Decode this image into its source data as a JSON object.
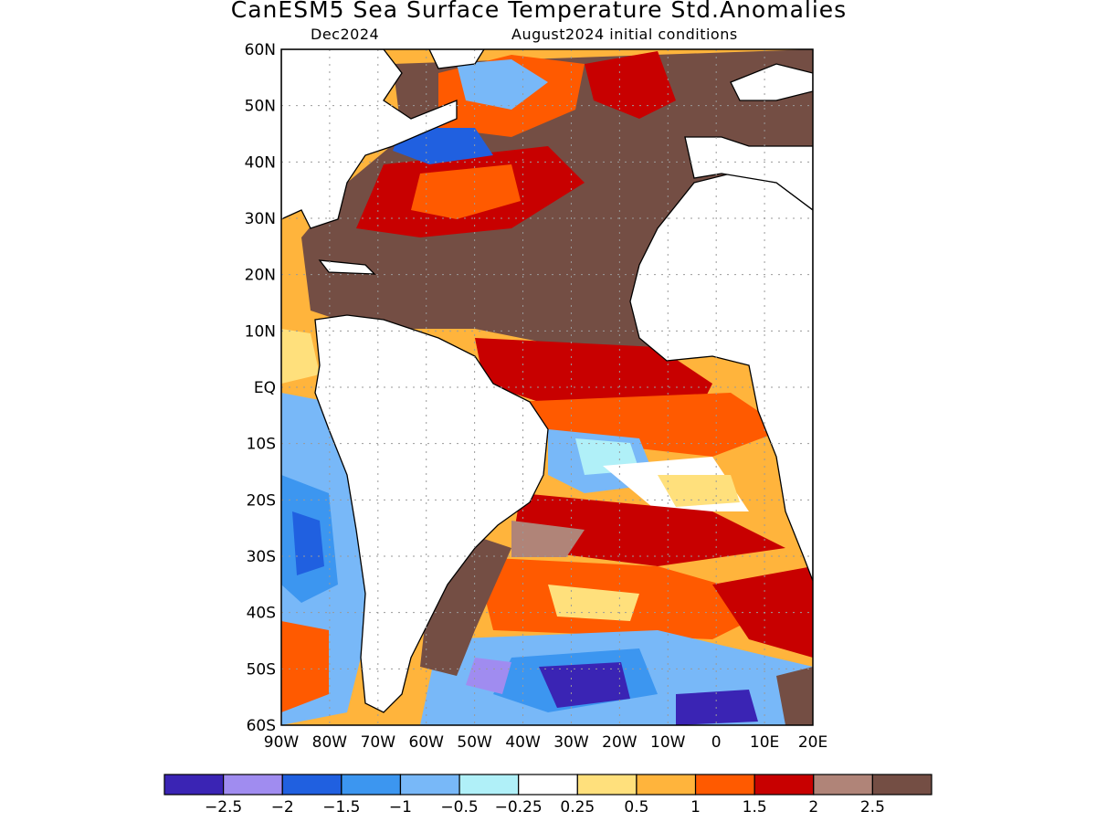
{
  "title": "CanESM5 Sea Surface Temperature Std.Anomalies",
  "subtitle_left": "Dec2024",
  "subtitle_right": "August2024 initial conditions",
  "lat_ticks": [
    "60N",
    "50N",
    "40N",
    "30N",
    "20N",
    "10N",
    "EQ",
    "10S",
    "20S",
    "30S",
    "40S",
    "50S",
    "60S"
  ],
  "lon_ticks": [
    "90W",
    "80W",
    "70W",
    "60W",
    "50W",
    "40W",
    "30W",
    "20W",
    "10W",
    "0",
    "10E",
    "20E"
  ],
  "legend": {
    "colors": [
      "#3a24b4",
      "#a08cf0",
      "#2060e0",
      "#3c96f0",
      "#78b8f8",
      "#b0f0f8",
      "#ffffff",
      "#ffe07c",
      "#ffb43c",
      "#ff5a00",
      "#c80000",
      "#b08478",
      "#744e44"
    ],
    "labels": [
      "−2.5",
      "−2",
      "−1.5",
      "−1",
      "−0.5",
      "−0.25",
      "0.25",
      "0.5",
      "1",
      "1.5",
      "2",
      "2.5"
    ]
  },
  "colors": {
    "land": "#ffffff",
    "coast": "#000000",
    "grid": "#999999"
  }
}
